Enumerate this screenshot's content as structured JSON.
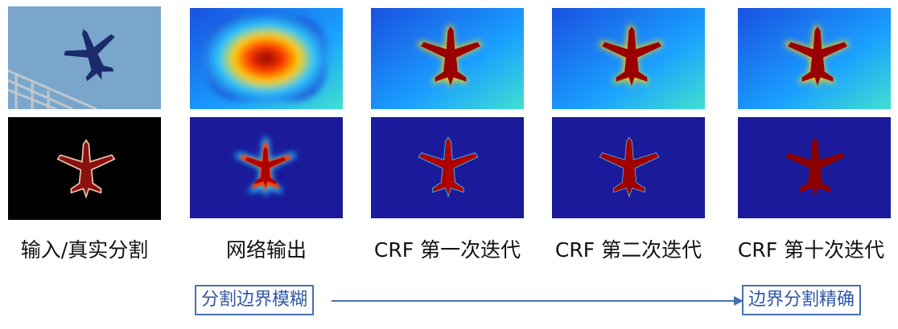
{
  "captions": {
    "input_gt": "输入/真实分割",
    "net_output": "网络输出",
    "crf_1": "CRF 第一次迭代",
    "crf_2": "CRF 第二次迭代",
    "crf_10": "CRF 第十次迭代"
  },
  "labels": {
    "blurry": "分割边界模糊",
    "precise": "边界分割精确"
  },
  "colors": {
    "accent": "#4a6fb5",
    "heat_low": "#1a1a9a",
    "heat_mid": "#2ac8ff",
    "heat_high": "#8b0000",
    "gt_fill": "#8b1010",
    "sky": "#7aa6cc"
  },
  "icons": [
    "airplane-photo",
    "airplane-mask",
    "arrow-right-icon"
  ]
}
